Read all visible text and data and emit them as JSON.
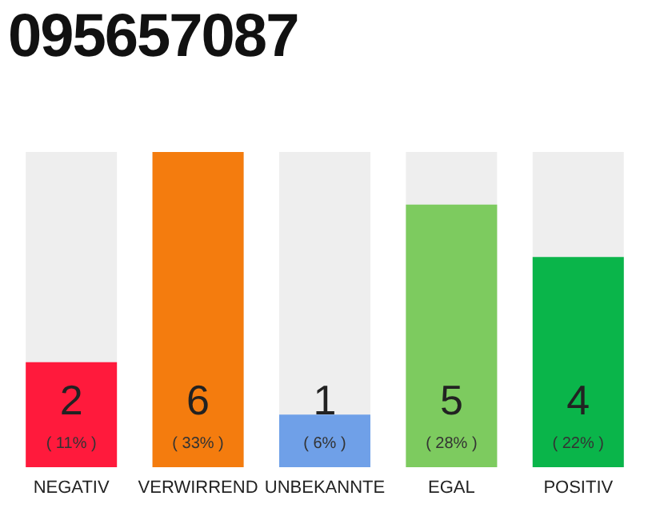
{
  "chart_data": {
    "type": "bar",
    "title": "095657087",
    "categories": [
      "NEGATIV",
      "VERWIRREND",
      "UNBEKANNTE",
      "EGAL",
      "POSITIV"
    ],
    "values": [
      2,
      6,
      1,
      5,
      4
    ],
    "colors": [
      "#ff1a3c",
      "#f47c0e",
      "#6fa0e8",
      "#7dcb5f",
      "#0ab54a"
    ],
    "data_labels": true,
    "annotations": [
      "( 11% )",
      "( 33% )",
      "( 6% )",
      "( 28% )",
      "( 22% )"
    ]
  }
}
